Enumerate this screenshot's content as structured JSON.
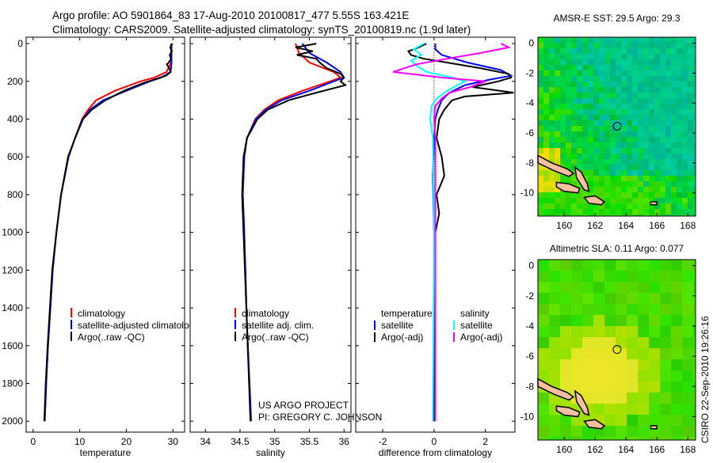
{
  "header": {
    "line1": "Argo profile: AO 5901864_83 17-Aug-2010 20100817_477 5.55S 163.421E",
    "line2": "Climatology: CARS2009. Satellite-adjusted climatology: synTS_20100819.nc (1.9d later)"
  },
  "credit": {
    "project": "US ARGO PROJECT",
    "pi": "PI: GREGORY C. JOHNSON"
  },
  "timestamp": "CSIRO 22-Sep-2010 19:26:16",
  "colors": {
    "climatology": "#ff0000",
    "satellite": "#0000ff",
    "argo": "#000000",
    "sat_sal": "#00ffff",
    "argo_sal": "#ff00ff"
  },
  "chart_data": [
    {
      "type": "line",
      "xlabel": "temperature",
      "ylim": [
        2058,
        -34
      ],
      "xlim": [
        -1.5,
        32.5
      ],
      "xticks": [
        "0",
        "10",
        "20",
        "30"
      ],
      "yticks": [
        "0",
        "200",
        "400",
        "600",
        "800",
        "1000",
        "1200",
        "1400",
        "1600",
        "1800",
        "2000"
      ],
      "legend": [
        "climatology",
        "satellite-adjusted climatology",
        "Argo(..raw -QC)"
      ],
      "series": [
        {
          "name": "climatology",
          "color": "#ff0000",
          "depth": [
            0,
            100,
            150,
            180,
            200,
            250,
            300,
            350,
            400,
            500,
            600,
            800,
            1000,
            1200,
            1400,
            1600,
            1800,
            2000
          ],
          "values": [
            29.6,
            29.6,
            28.6,
            26,
            23,
            17.5,
            13.5,
            11.8,
            10.5,
            9,
            7.6,
            6,
            5,
            4.2,
            3.7,
            3.2,
            2.8,
            2.5
          ]
        },
        {
          "name": "satellite-adjusted climatology",
          "color": "#0000ff",
          "depth": [
            0,
            100,
            150,
            180,
            200,
            250,
            300,
            350,
            400,
            500,
            600,
            800,
            1000,
            1200,
            1400,
            1600,
            1800,
            2000
          ],
          "values": [
            29.7,
            29.7,
            29.5,
            27.5,
            25,
            20,
            15,
            12.2,
            10.6,
            9,
            7.6,
            6,
            5,
            4.2,
            3.7,
            3.2,
            2.8,
            2.5
          ]
        },
        {
          "name": "Argo(..raw -QC)",
          "color": "#000000",
          "depth": [
            0,
            20,
            40,
            60,
            80,
            100,
            110,
            130,
            150,
            170,
            190,
            210,
            250,
            300,
            350,
            400,
            500,
            600,
            800,
            1000,
            1200,
            1400,
            1600,
            1800,
            2000
          ],
          "values": [
            29.9,
            29.4,
            29.8,
            29.3,
            29.6,
            29.1,
            28.7,
            29.2,
            29.5,
            28.5,
            26,
            23.5,
            19.5,
            15.5,
            12.6,
            10.7,
            9,
            7.5,
            6,
            5,
            4.1,
            3.6,
            3.1,
            2.7,
            2.4
          ]
        }
      ]
    },
    {
      "type": "line",
      "xlabel": "salinity",
      "ylim": [
        2058,
        -34
      ],
      "xlim": [
        33.78,
        36.1
      ],
      "xticks": [
        "34",
        "34.5",
        "35",
        "35.5",
        "36"
      ],
      "legend": [
        "climatology",
        "satellite adj. clim.",
        "Argo(..raw -QC)"
      ],
      "series": [
        {
          "name": "climatology",
          "color": "#ff0000",
          "depth": [
            0,
            50,
            100,
            150,
            180,
            200,
            250,
            300,
            350,
            400,
            500,
            600,
            800,
            1000,
            1500,
            2000
          ],
          "values": [
            35.3,
            35.35,
            35.5,
            35.85,
            35.95,
            35.8,
            35.4,
            35.05,
            34.85,
            34.72,
            34.6,
            34.56,
            34.54,
            34.56,
            34.6,
            34.66
          ]
        },
        {
          "name": "satellite adj. clim.",
          "color": "#0000ff",
          "depth": [
            0,
            50,
            100,
            150,
            180,
            200,
            250,
            300,
            350,
            400,
            500,
            600,
            800,
            1000,
            1500,
            2000
          ],
          "values": [
            35.4,
            35.5,
            35.75,
            35.95,
            36.0,
            35.85,
            35.5,
            35.1,
            34.87,
            34.73,
            34.6,
            34.56,
            34.54,
            34.56,
            34.6,
            34.66
          ]
        },
        {
          "name": "Argo(..raw -QC)",
          "color": "#000000",
          "depth": [
            0,
            20,
            40,
            60,
            80,
            100,
            130,
            160,
            180,
            200,
            220,
            260,
            300,
            350,
            400,
            500,
            600,
            800,
            1000,
            1500,
            2000
          ],
          "values": [
            35.6,
            35.3,
            35.55,
            35.32,
            35.6,
            35.65,
            35.75,
            35.95,
            36.0,
            35.95,
            36.02,
            35.6,
            35.2,
            34.9,
            34.75,
            34.6,
            34.55,
            34.53,
            34.55,
            34.6,
            34.65
          ]
        }
      ]
    },
    {
      "type": "line",
      "xlabel": "difference from climatology",
      "ylim": [
        2058,
        -34
      ],
      "xlim": [
        -3.05,
        3.15
      ],
      "xticks": [
        "-2",
        "0",
        "2"
      ],
      "legend_groups": [
        {
          "title": "temperature",
          "items": [
            "satellite",
            "Argo(-adj)"
          ]
        },
        {
          "title": "salinity",
          "items": [
            "satellite",
            "Argo(-adj)"
          ]
        }
      ],
      "series": [
        {
          "name": "temperature satellite",
          "color": "#0000ff",
          "depth": [
            0,
            30,
            60,
            100,
            140,
            170,
            190,
            220,
            260,
            300,
            350,
            400,
            500,
            700,
            1000,
            2000
          ],
          "values": [
            0.05,
            0.05,
            0.3,
            1.3,
            2.6,
            3.0,
            2.2,
            1.2,
            0.6,
            0.3,
            0.15,
            0.05,
            0,
            -0.05,
            0,
            0
          ]
        },
        {
          "name": "temperature Argo(-adj)",
          "color": "#000000",
          "depth": [
            0,
            20,
            40,
            60,
            80,
            100,
            130,
            160,
            180,
            200,
            230,
            260,
            280,
            300,
            350,
            400,
            500,
            600,
            700,
            800,
            900,
            1000,
            1200,
            2000
          ],
          "values": [
            -0.3,
            -0.6,
            -1.0,
            -0.9,
            -0.4,
            0.5,
            1.8,
            2.9,
            3.0,
            2.5,
            1.5,
            3.1,
            1.2,
            0.7,
            0.4,
            0.2,
            0.1,
            0.3,
            0.4,
            0.1,
            0.2,
            0.05,
            0,
            0
          ]
        },
        {
          "name": "salinity satellite",
          "color": "#00ffff",
          "depth": [
            0,
            30,
            60,
            90,
            120,
            150,
            180,
            200,
            220,
            250,
            290,
            330,
            400,
            500,
            1000,
            2000
          ],
          "values": [
            -0.4,
            -0.8,
            -0.5,
            -0.9,
            -0.65,
            -0.3,
            0.7,
            1.2,
            0.9,
            0.5,
            0.1,
            -0.1,
            -0.15,
            -0.05,
            0,
            -0.05
          ]
        },
        {
          "name": "salinity Argo(-adj)",
          "color": "#ff00ff",
          "depth": [
            0,
            20,
            50,
            80,
            110,
            150,
            180,
            200,
            230,
            260,
            290,
            330,
            400,
            500,
            1000,
            2000
          ],
          "values": [
            2.6,
            2.9,
            1.8,
            0.5,
            -0.7,
            -1.6,
            0.3,
            2.0,
            1.4,
            0.6,
            0.3,
            0.05,
            0,
            0.05,
            0.05,
            0.05
          ]
        }
      ]
    },
    {
      "type": "heatmap",
      "title": "AMSR-E SST: 29.5 Argo: 29.3",
      "xlim": [
        158.3,
        168.5
      ],
      "ylim": [
        -11.55,
        0.4
      ],
      "xticks": [
        "160",
        "162",
        "164",
        "166",
        "168"
      ],
      "yticks": [
        "0",
        "-2",
        "-4",
        "-6",
        "-8",
        "-10"
      ],
      "marker": {
        "lon": 163.421,
        "lat": -5.55
      }
    },
    {
      "type": "heatmap",
      "title": "Altimetric SLA: 0.11 Argo: 0.077",
      "xlim": [
        158.3,
        168.5
      ],
      "ylim": [
        -11.55,
        0.4
      ],
      "xticks": [
        "160",
        "162",
        "164",
        "166",
        "168"
      ],
      "yticks": [
        "0",
        "-2",
        "-4",
        "-6",
        "-8",
        "-10"
      ],
      "marker": {
        "lon": 163.421,
        "lat": -5.55
      }
    }
  ]
}
